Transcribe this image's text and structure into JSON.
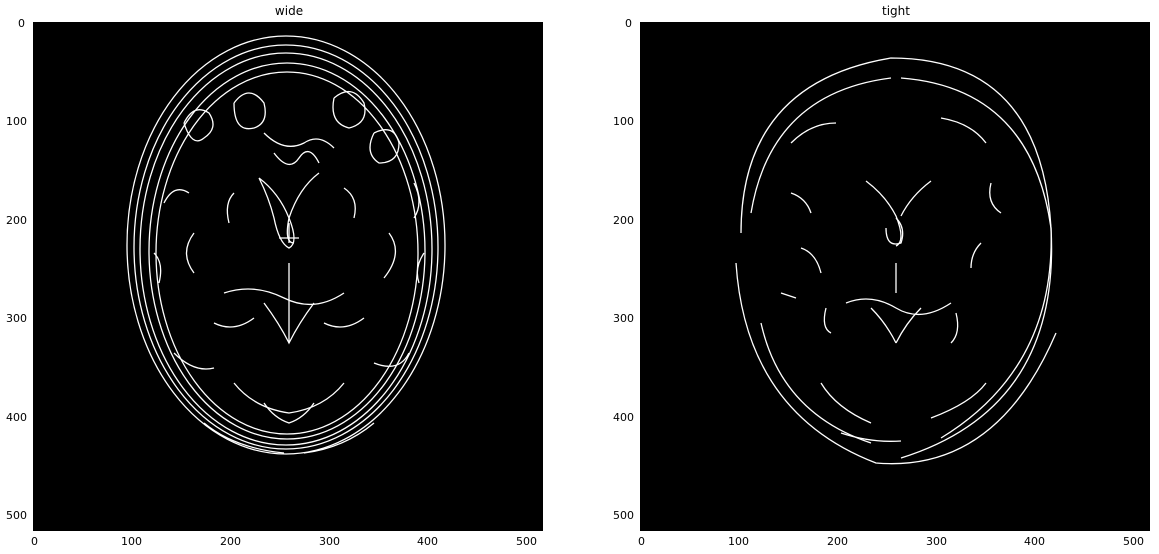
{
  "figure": {
    "panels": [
      {
        "title": "wide",
        "image_description_key": "canny-edges-brain-mri-wide-threshold",
        "xticks": [
          "0",
          "100",
          "200",
          "300",
          "400",
          "500"
        ],
        "yticks": [
          "0",
          "100",
          "200",
          "300",
          "400",
          "500"
        ]
      },
      {
        "title": "tight",
        "image_description_key": "canny-edges-brain-mri-tight-threshold",
        "xticks": [
          "0",
          "100",
          "200",
          "300",
          "400",
          "500"
        ],
        "yticks": [
          "0",
          "100",
          "200",
          "300",
          "400",
          "500"
        ]
      }
    ],
    "colors": {
      "background": "#000000",
      "edges": "#ffffff",
      "page": "#ffffff"
    }
  }
}
